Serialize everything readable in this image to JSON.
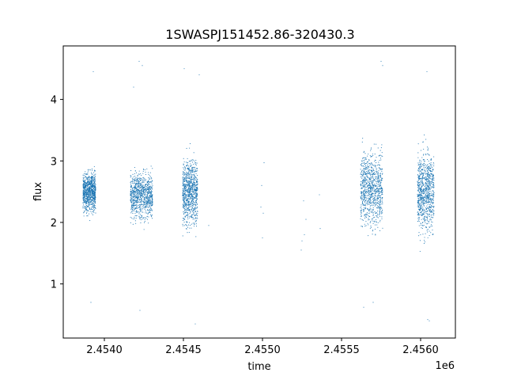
{
  "chart_data": {
    "type": "scatter",
    "title": "1SWASPJ151452.86-320430.3",
    "xlabel": "time",
    "ylabel": "flux",
    "x_offset_label": "1e6",
    "xlim": [
      2453740,
      2456220
    ],
    "ylim": [
      0.12,
      4.87
    ],
    "x_ticks": [
      2.454,
      2.4545,
      2.455,
      2.4555,
      2.456
    ],
    "x_tick_labels": [
      "2.4540",
      "2.4545",
      "2.4550",
      "2.4555",
      "2.4560"
    ],
    "y_ticks": [
      1,
      2,
      3,
      4
    ],
    "y_tick_labels": [
      "1",
      "2",
      "3",
      "4"
    ],
    "grid": false,
    "point_color": "#1f77b4",
    "series": [
      {
        "clusters": [
          {
            "x_start": 2453865,
            "x_end": 2453945,
            "flux_median": 2.5,
            "flux_low": 1.8,
            "flux_high": 3.1
          },
          {
            "x_start": 2454165,
            "x_end": 2454305,
            "flux_median": 2.45,
            "flux_low": 1.7,
            "flux_high": 3.2
          },
          {
            "x_start": 2454495,
            "x_end": 2454590,
            "flux_median": 2.5,
            "flux_low": 1.5,
            "flux_high": 3.6
          },
          {
            "x_start": 2455620,
            "x_end": 2455760,
            "flux_median": 2.55,
            "flux_low": 1.4,
            "flux_high": 3.8
          },
          {
            "x_start": 2455980,
            "x_end": 2456085,
            "flux_median": 2.5,
            "flux_low": 1.3,
            "flux_high": 3.9
          }
        ],
        "sparse_points": [
          {
            "x": 2453930,
            "y": 4.45
          },
          {
            "x": 2453915,
            "y": 0.7
          },
          {
            "x": 2454185,
            "y": 4.2
          },
          {
            "x": 2454220,
            "y": 4.62
          },
          {
            "x": 2454240,
            "y": 4.55
          },
          {
            "x": 2454225,
            "y": 0.57
          },
          {
            "x": 2454600,
            "y": 4.4
          },
          {
            "x": 2454575,
            "y": 0.35
          },
          {
            "x": 2454505,
            "y": 4.5
          },
          {
            "x": 2454660,
            "y": 1.95
          },
          {
            "x": 2455010,
            "y": 2.97
          },
          {
            "x": 2454995,
            "y": 2.6
          },
          {
            "x": 2454990,
            "y": 2.25
          },
          {
            "x": 2455000,
            "y": 1.75
          },
          {
            "x": 2455005,
            "y": 2.15
          },
          {
            "x": 2455245,
            "y": 1.55
          },
          {
            "x": 2455260,
            "y": 2.35
          },
          {
            "x": 2455275,
            "y": 2.05
          },
          {
            "x": 2455265,
            "y": 1.8
          },
          {
            "x": 2455250,
            "y": 1.7
          },
          {
            "x": 2455360,
            "y": 2.45
          },
          {
            "x": 2455365,
            "y": 1.9
          },
          {
            "x": 2455640,
            "y": 0.62
          },
          {
            "x": 2455700,
            "y": 0.7
          },
          {
            "x": 2455750,
            "y": 4.62
          },
          {
            "x": 2455760,
            "y": 4.55
          },
          {
            "x": 2456045,
            "y": 0.42
          },
          {
            "x": 2456055,
            "y": 0.4
          },
          {
            "x": 2456040,
            "y": 4.45
          }
        ]
      }
    ]
  }
}
